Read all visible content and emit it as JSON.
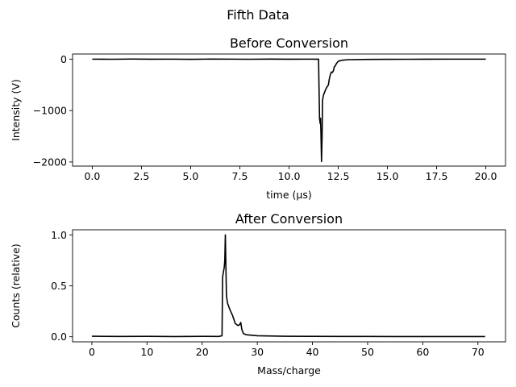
{
  "figure_title": "Fifth Data",
  "chart_data": [
    {
      "type": "line",
      "title": "Before Conversion",
      "xlabel": "time (μs)",
      "ylabel": "Intensity (V)",
      "xlim": [
        -1.0,
        21.0
      ],
      "ylim": [
        -2080,
        100
      ],
      "xticks": [
        0.0,
        2.5,
        5.0,
        7.5,
        10.0,
        12.5,
        15.0,
        17.5,
        20.0
      ],
      "xtick_labels": [
        "0.0",
        "2.5",
        "5.0",
        "7.5",
        "10.0",
        "12.5",
        "15.0",
        "17.5",
        "20.0"
      ],
      "yticks": [
        0,
        -1000,
        -2000
      ],
      "ytick_labels": [
        "0",
        "−1000",
        "−2000"
      ],
      "grid": false,
      "series": [
        {
          "color": "#000000",
          "x": [
            0.0,
            1.0,
            2.0,
            3.0,
            4.0,
            5.0,
            6.0,
            7.0,
            8.0,
            9.0,
            10.0,
            11.0,
            11.5,
            11.55,
            11.58,
            11.6,
            11.62,
            11.65,
            11.68,
            11.7,
            11.75,
            11.8,
            11.85,
            11.9,
            12.0,
            12.05,
            12.1,
            12.15,
            12.2,
            12.25,
            12.3,
            12.35,
            12.4,
            12.5,
            12.7,
            13.0,
            14.0,
            15.0,
            16.0,
            17.0,
            18.0,
            19.0,
            20.0
          ],
          "y": [
            0,
            -2,
            2,
            -1,
            0,
            -3,
            1,
            0,
            -2,
            1,
            -1,
            0,
            -1,
            -1150,
            -1250,
            -1150,
            -1400,
            -1990,
            -1500,
            -800,
            -700,
            -650,
            -600,
            -560,
            -500,
            -380,
            -300,
            -250,
            -260,
            -230,
            -150,
            -130,
            -90,
            -40,
            -20,
            -10,
            -5,
            -3,
            -2,
            -1,
            0,
            0,
            0
          ]
        }
      ]
    },
    {
      "type": "line",
      "title": "After Conversion",
      "xlabel": "Mass/charge",
      "ylabel": "Counts (relative)",
      "xlim": [
        -3.5,
        75.0
      ],
      "ylim": [
        -0.05,
        1.05
      ],
      "xticks": [
        0,
        10,
        20,
        30,
        40,
        50,
        60,
        70
      ],
      "xtick_labels": [
        "0",
        "10",
        "20",
        "30",
        "40",
        "50",
        "60",
        "70"
      ],
      "yticks": [
        0.0,
        0.5,
        1.0
      ],
      "ytick_labels": [
        "0.0",
        "0.5",
        "1.0"
      ],
      "grid": false,
      "series": [
        {
          "color": "#000000",
          "x": [
            0.0,
            5.0,
            10.0,
            15.0,
            20.0,
            23.0,
            23.6,
            23.7,
            23.8,
            23.9,
            24.0,
            24.1,
            24.2,
            24.3,
            24.4,
            24.6,
            25.0,
            25.5,
            26.0,
            26.5,
            26.8,
            27.0,
            27.2,
            27.5,
            28.0,
            29.0,
            30.0,
            35.0,
            40.0,
            45.0,
            50.0,
            55.0,
            60.0,
            65.0,
            71.3
          ],
          "y": [
            0.005,
            0.003,
            0.004,
            0.002,
            0.004,
            0.003,
            0.01,
            0.58,
            0.62,
            0.65,
            0.68,
            0.75,
            1.0,
            0.7,
            0.4,
            0.33,
            0.27,
            0.21,
            0.13,
            0.11,
            0.12,
            0.14,
            0.07,
            0.03,
            0.02,
            0.015,
            0.01,
            0.005,
            0.004,
            0.003,
            0.003,
            0.002,
            0.002,
            0.002,
            0.002
          ]
        }
      ]
    }
  ]
}
